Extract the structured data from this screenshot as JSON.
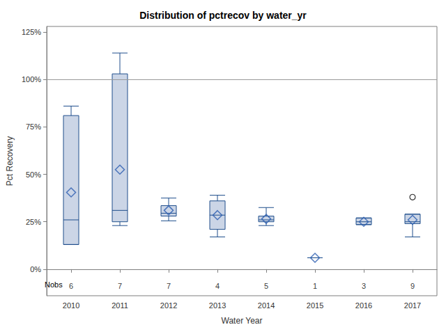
{
  "chart_data": {
    "type": "boxplot",
    "title": "Distribution of pctrecov by water_yr",
    "x_label": "Water Year",
    "y_label": "Pct Recovery",
    "categories": [
      "2010",
      "2011",
      "2012",
      "2013",
      "2014",
      "2015",
      "2016",
      "2017"
    ],
    "min": [
      13,
      23,
      25.5,
      17,
      23,
      6,
      23.5,
      17
    ],
    "q1": [
      13,
      25,
      28,
      21,
      25,
      6,
      23.5,
      24
    ],
    "median": [
      26,
      31,
      29.5,
      28.5,
      26,
      6,
      25,
      25
    ],
    "q3": [
      81,
      103,
      33.5,
      36,
      28,
      6,
      27,
      29
    ],
    "max": [
      86,
      114,
      37.5,
      39,
      32.5,
      6,
      27,
      29
    ],
    "mean": [
      40.5,
      52.5,
      31,
      28.5,
      26.5,
      6,
      25,
      26
    ],
    "outliers": [
      [],
      [],
      [],
      [],
      [],
      [],
      [],
      [
        38
      ]
    ],
    "nobs_label": "Nobs",
    "nobs": [
      6,
      7,
      7,
      4,
      5,
      1,
      3,
      9
    ],
    "reference_line": 100,
    "color": "#cbd5e6",
    "ylim": [
      -14,
      128
    ],
    "yticks": [
      {
        "value": 0,
        "label": "0%"
      },
      {
        "value": 25,
        "label": "25%"
      },
      {
        "value": 50,
        "label": "50%"
      },
      {
        "value": 75,
        "label": "75%"
      },
      {
        "value": 100,
        "label": "100%"
      },
      {
        "value": 125,
        "label": "125%"
      }
    ],
    "grid": false
  }
}
